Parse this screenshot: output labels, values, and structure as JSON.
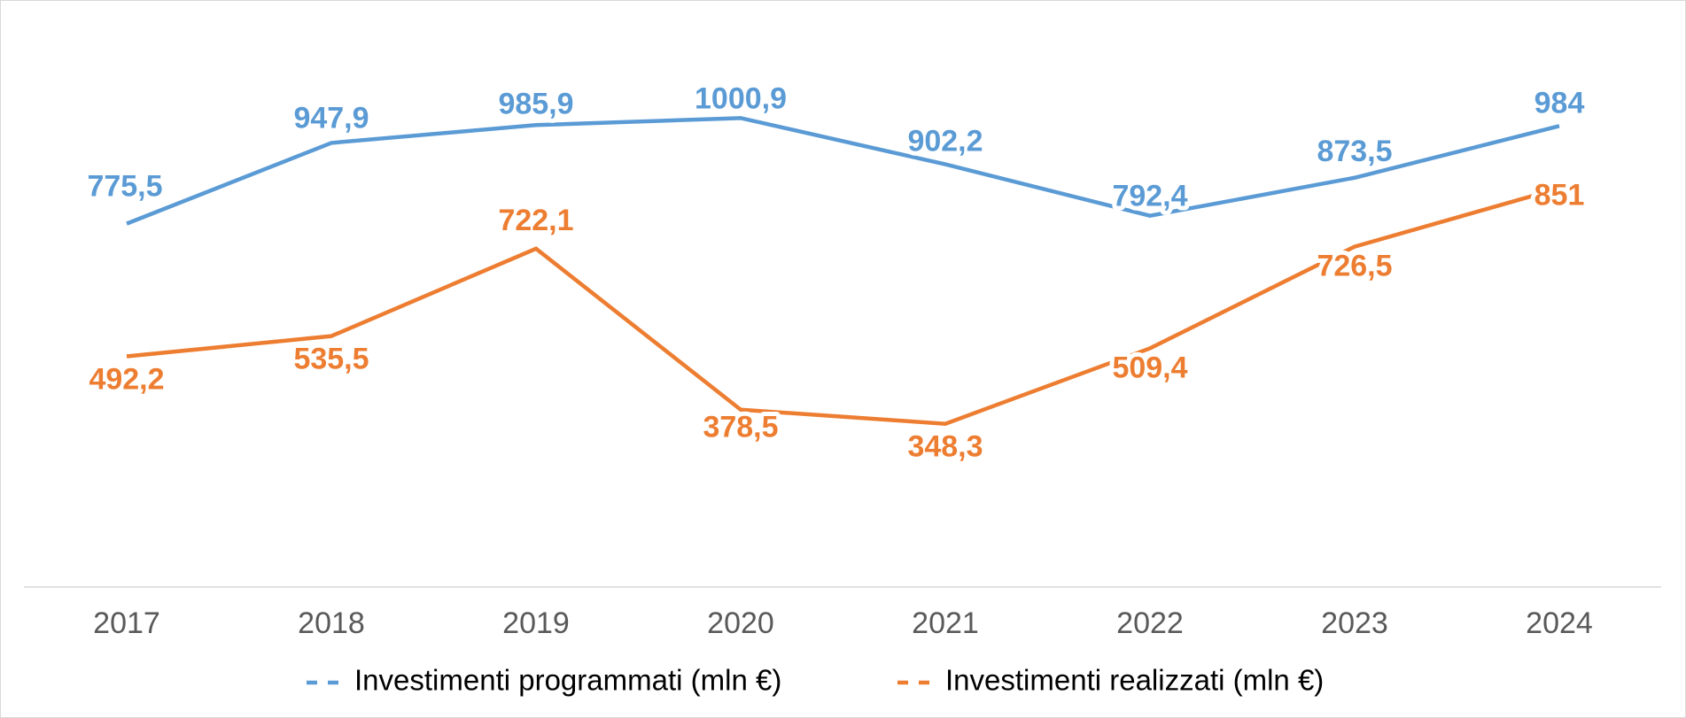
{
  "chart_data": {
    "type": "line",
    "categories": [
      "2017",
      "2018",
      "2019",
      "2020",
      "2021",
      "2022",
      "2023",
      "2024"
    ],
    "series": [
      {
        "name": "Investimenti programmati (mln €)",
        "color": "#5b9bd5",
        "values": [
          775.5,
          947.9,
          985.9,
          1000.9,
          902.2,
          792.4,
          873.5,
          984
        ],
        "value_labels": [
          "775,5",
          "947,9",
          "985,9",
          "1000,9",
          "902,2",
          "792,4",
          "873,5",
          "984"
        ]
      },
      {
        "name": "Investimenti realizzati (mln €)",
        "color": "#ed7d31",
        "values": [
          492.2,
          535.5,
          722.1,
          378.5,
          348.3,
          509.4,
          726.5,
          851
        ],
        "value_labels": [
          "492,2",
          "535,5",
          "722,1",
          "378,5",
          "348,3",
          "509,4",
          "726,5",
          "851"
        ]
      }
    ],
    "ylim": [
      0,
      1200
    ],
    "legend": "bottom"
  }
}
